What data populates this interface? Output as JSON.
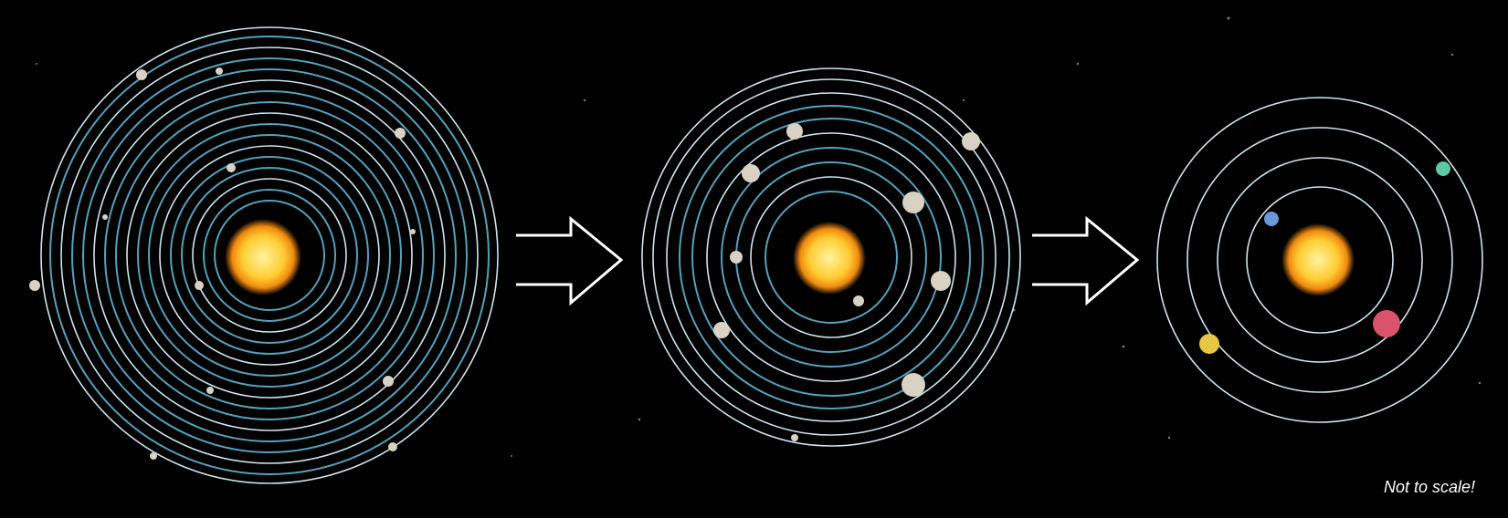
{
  "caption": "Not to scale!"
}
